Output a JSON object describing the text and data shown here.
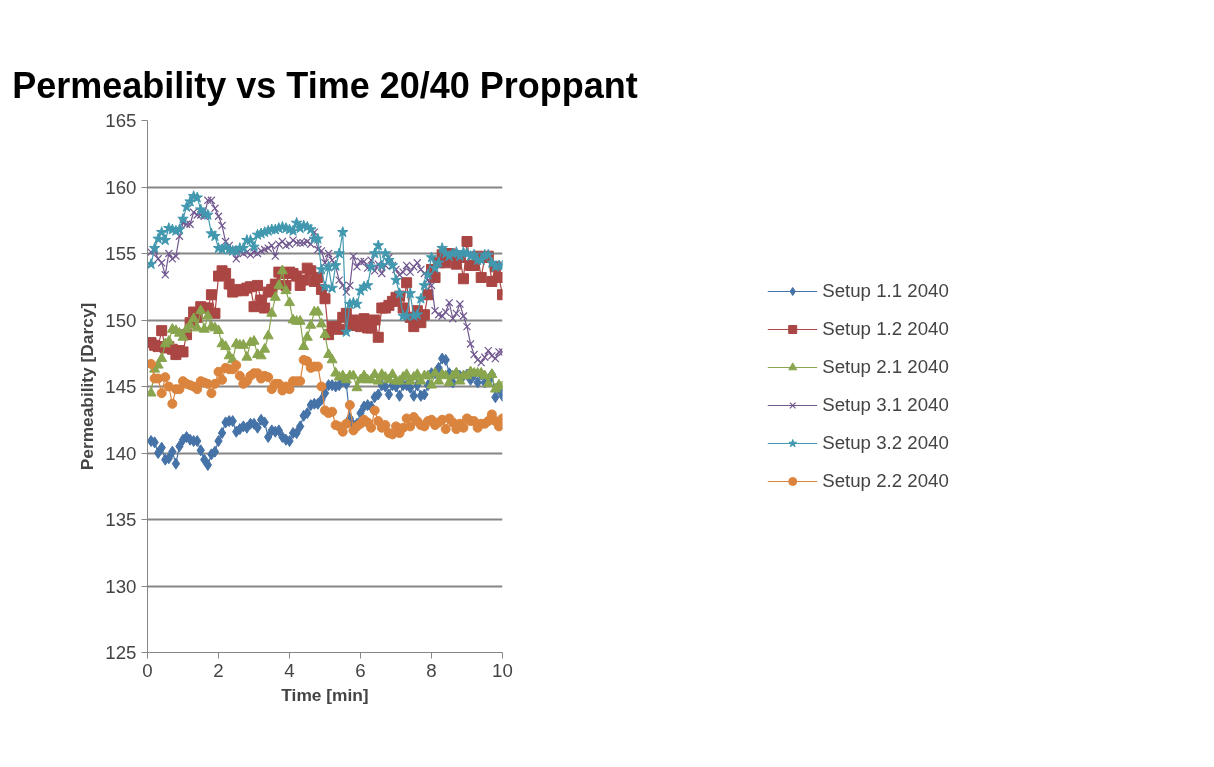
{
  "chart_data": {
    "type": "line",
    "title": "Permeability vs Time 20/40 Proppant",
    "xlabel": "Time [min]",
    "ylabel": "Permeability [Darcy]",
    "x": [
      0.1,
      0.2,
      0.3,
      0.4,
      0.5,
      0.6,
      0.7,
      0.8,
      0.9,
      1.0,
      1.1,
      1.2,
      1.3,
      1.4,
      1.5,
      1.6,
      1.7,
      1.8,
      1.9,
      2.0,
      2.1,
      2.2,
      2.3,
      2.4,
      2.5,
      2.6,
      2.7,
      2.8,
      2.9,
      3.0,
      3.1,
      3.2,
      3.3,
      3.4,
      3.5,
      3.6,
      3.7,
      3.8,
      3.9,
      4.0,
      4.1,
      4.2,
      4.3,
      4.4,
      4.5,
      4.6,
      4.7,
      4.8,
      4.9,
      5.0,
      5.1,
      5.2,
      5.3,
      5.4,
      5.5,
      5.6,
      5.7,
      5.8,
      5.9,
      6.0,
      6.1,
      6.2,
      6.3,
      6.4,
      6.5,
      6.6,
      6.7,
      6.8,
      6.9,
      7.0,
      7.1,
      7.2,
      7.3,
      7.4,
      7.5,
      7.6,
      7.7,
      7.8,
      7.9,
      8.0,
      8.1,
      8.2,
      8.3,
      8.4,
      8.5,
      8.6,
      8.7,
      8.8,
      8.9,
      9.0,
      9.1,
      9.2,
      9.3,
      9.4,
      9.5,
      9.6,
      9.7,
      9.8,
      9.9,
      10.0
    ],
    "series": [
      {
        "name": "Setup 1.1 2040",
        "color": "#4572a7",
        "marker": "diamond",
        "values": [
          140.9,
          140.8,
          140.0,
          140.4,
          139.5,
          139.6,
          140.1,
          139.2,
          140.5,
          141.0,
          141.2,
          141.0,
          140.9,
          140.9,
          140.2,
          139.5,
          139.1,
          139.9,
          140.1,
          140.9,
          141.5,
          142.3,
          142.4,
          142.4,
          141.6,
          141.8,
          142.0,
          141.9,
          142.2,
          142.2,
          141.9,
          142.5,
          142.3,
          141.2,
          141.7,
          141.6,
          141.7,
          141.2,
          141.0,
          140.9,
          141.5,
          141.5,
          142.0,
          142.8,
          143.0,
          143.6,
          143.7,
          143.7,
          144.0,
          144.5,
          145.1,
          145.1,
          145.0,
          145.1,
          145.5,
          145.2,
          142.6,
          142.1,
          142.2,
          143.0,
          143.5,
          143.6,
          143.5,
          144.2,
          144.4,
          145.1,
          145.0,
          144.4,
          145.1,
          145.0,
          144.3,
          145.1,
          145.1,
          144.9,
          144.3,
          145.1,
          144.3,
          144.4,
          145.1,
          146.0,
          146.0,
          146.4,
          147.1,
          147.0,
          146.0,
          145.3,
          146.0,
          145.8,
          145.8,
          145.9,
          145.5,
          145.9,
          145.3,
          145.9,
          145.3,
          145.4,
          145.9,
          144.2,
          144.8,
          144.3
        ]
      },
      {
        "name": "Setup 1.2 2040",
        "color": "#aa4643",
        "marker": "square",
        "values": [
          148.3,
          148.1,
          148.0,
          149.2,
          147.9,
          148.0,
          147.8,
          147.4,
          147.7,
          147.6,
          148.9,
          149.8,
          150.6,
          150.2,
          151.0,
          150.9,
          150.9,
          151.9,
          150.5,
          153.3,
          153.7,
          153.5,
          152.7,
          152.1,
          152.2,
          152.3,
          152.2,
          152.4,
          152.5,
          151.0,
          152.6,
          151.5,
          150.9,
          152.1,
          152.3,
          152.7,
          153.6,
          153.5,
          152.6,
          153.6,
          153.5,
          153.3,
          152.6,
          153.0,
          153.9,
          153.7,
          152.9,
          153.2,
          152.3,
          151.6,
          148.9,
          149.5,
          149.5,
          149.3,
          150.2,
          150.5,
          149.6,
          150.0,
          149.6,
          149.5,
          150.1,
          149.4,
          149.4,
          150.0,
          148.7,
          150.9,
          150.9,
          151.1,
          151.4,
          151.7,
          151.8,
          150.9,
          152.8,
          150.2,
          149.5,
          150.7,
          149.8,
          150.4,
          151.9,
          153.8,
          153.2,
          154.3,
          154.9,
          154.3,
          155.0,
          154.9,
          154.2,
          154.7,
          153.1,
          155.9,
          154.1,
          154.1,
          154.8,
          153.2,
          154.7,
          154.8,
          152.9,
          154.0,
          153.2,
          151.9
        ]
      },
      {
        "name": "Setup 2.1 2040",
        "color": "#89a54e",
        "marker": "triangle",
        "values": [
          144.5,
          146.3,
          146.6,
          147.1,
          148.2,
          148.4,
          149.3,
          149.2,
          149.0,
          148.7,
          149.3,
          149.6,
          150.1,
          149.4,
          150.7,
          149.3,
          150.3,
          149.5,
          149.4,
          149.2,
          148.2,
          148.0,
          147.3,
          147.0,
          148.2,
          148.1,
          148.1,
          147.2,
          148.3,
          148.4,
          147.4,
          147.3,
          147.8,
          148.8,
          150.5,
          151.7,
          152.6,
          153.7,
          152.2,
          151.3,
          150.0,
          149.9,
          149.9,
          148.0,
          148.7,
          149.6,
          150.6,
          150.6,
          149.7,
          148.9,
          147.4,
          147.0,
          146.0,
          145.7,
          145.8,
          145.5,
          145.8,
          145.8,
          144.9,
          145.5,
          145.8,
          145.5,
          145.5,
          145.9,
          145.4,
          145.9,
          145.7,
          145.5,
          145.9,
          145.4,
          145.4,
          145.7,
          145.9,
          145.4,
          145.7,
          145.9,
          145.4,
          145.8,
          145.8,
          145.1,
          146.0,
          145.4,
          145.9,
          145.8,
          145.3,
          145.8,
          146.0,
          145.4,
          145.8,
          145.8,
          146.1,
          146.0,
          146.0,
          146.0,
          145.8,
          145.2,
          145.9,
          144.8,
          145.1,
          145.0
        ]
      },
      {
        "name": "Setup 3.1 2040",
        "color": "#71588f",
        "marker": "cross",
        "values": [
          155.1,
          155.2,
          154.6,
          154.3,
          153.4,
          155.0,
          154.6,
          154.8,
          156.3,
          157.3,
          157.2,
          157.2,
          158.1,
          157.9,
          157.9,
          157.8,
          159.0,
          159.0,
          158.4,
          157.8,
          157.1,
          155.9,
          155.6,
          155.3,
          154.6,
          155.2,
          155.0,
          155.1,
          154.9,
          155.1,
          155.0,
          155.2,
          155.3,
          155.4,
          155.6,
          154.8,
          155.7,
          155.9,
          155.6,
          155.7,
          156.0,
          155.8,
          155.8,
          155.8,
          155.9,
          155.7,
          156.6,
          155.3,
          155.2,
          154.3,
          155.0,
          154.5,
          154.0,
          153.0,
          152.6,
          152.1,
          152.6,
          154.8,
          154.0,
          154.4,
          154.4,
          153.9,
          154.5,
          153.7,
          154.2,
          153.5,
          154.1,
          154.7,
          154.1,
          153.8,
          153.4,
          153.6,
          154.1,
          153.6,
          154.0,
          154.3,
          153.8,
          153.5,
          153.0,
          152.6,
          150.7,
          150.4,
          150.3,
          150.6,
          151.3,
          150.1,
          150.5,
          151.2,
          150.3,
          149.5,
          148.2,
          147.4,
          147.0,
          146.8,
          147.2,
          147.7,
          147.3,
          147.1,
          147.6,
          147.6
        ]
      },
      {
        "name": "Setup 3.2 2040",
        "color": "#4198af",
        "marker": "star",
        "values": [
          154.2,
          155.4,
          156.1,
          156.6,
          156.0,
          156.9,
          156.8,
          156.7,
          156.8,
          157.6,
          158.5,
          158.9,
          159.3,
          159.2,
          158.3,
          158.0,
          157.9,
          156.5,
          156.3,
          155.4,
          155.3,
          155.5,
          155.3,
          155.2,
          155.2,
          155.4,
          155.4,
          156.0,
          156.0,
          155.5,
          156.4,
          156.5,
          156.6,
          156.7,
          156.8,
          156.8,
          156.9,
          157.0,
          156.9,
          156.8,
          156.7,
          157.3,
          156.9,
          157.1,
          157.0,
          156.8,
          156.1,
          156.1,
          153.8,
          152.5,
          154.0,
          152.4,
          154.1,
          155.0,
          156.6,
          149.1,
          151.2,
          151.3,
          151.2,
          152.2,
          152.5,
          152.6,
          154.0,
          155.0,
          155.6,
          154.1,
          155.0,
          154.5,
          154.1,
          153.0,
          152.0,
          150.3,
          150.3,
          152.0,
          150.3,
          150.4,
          151.6,
          152.6,
          153.4,
          154.7,
          153.9,
          154.3,
          155.4,
          155.0,
          154.8,
          155.0,
          155.1,
          154.8,
          155.1,
          155.0,
          154.8,
          154.9,
          154.5,
          154.5,
          154.9,
          154.9,
          154.3,
          154.0,
          154.1,
          154.1
        ]
      },
      {
        "name": "Setup 2.2 2040",
        "color": "#db843d",
        "marker": "circle",
        "values": [
          146.7,
          145.6,
          145.6,
          144.5,
          145.7,
          145.0,
          143.7,
          144.8,
          144.8,
          145.4,
          145.2,
          145.1,
          145.0,
          144.8,
          145.4,
          145.3,
          145.2,
          144.5,
          145.2,
          146.1,
          145.5,
          146.4,
          146.3,
          146.3,
          146.6,
          145.8,
          145.2,
          145.4,
          145.8,
          146.0,
          146.0,
          145.6,
          145.8,
          145.7,
          144.8,
          145.2,
          145.2,
          144.7,
          145.0,
          144.8,
          145.4,
          145.4,
          145.4,
          147.0,
          146.9,
          146.4,
          146.5,
          146.5,
          145.0,
          143.2,
          143.0,
          143.1,
          142.1,
          142.0,
          141.6,
          142.2,
          143.6,
          141.7,
          142.0,
          142.2,
          142.5,
          142.3,
          141.9,
          143.2,
          142.4,
          141.9,
          142.1,
          141.5,
          141.4,
          142.0,
          141.5,
          141.9,
          142.6,
          142.0,
          142.7,
          142.4,
          142.1,
          142.0,
          142.4,
          142.5,
          142.1,
          142.3,
          142.5,
          141.8,
          142.6,
          142.3,
          141.8,
          142.2,
          141.9,
          142.6,
          142.4,
          142.4,
          141.9,
          142.2,
          142.2,
          142.4,
          142.9,
          142.4,
          142.0,
          142.6
        ]
      }
    ],
    "xlim": [
      0,
      10
    ],
    "xticks": [
      0,
      2,
      4,
      6,
      8,
      10
    ],
    "ylim": [
      125,
      165
    ],
    "yticks": [
      125,
      130,
      135,
      140,
      145,
      150,
      155,
      160,
      165
    ],
    "grid": "y",
    "legend": "right",
    "line_style": "solid"
  }
}
